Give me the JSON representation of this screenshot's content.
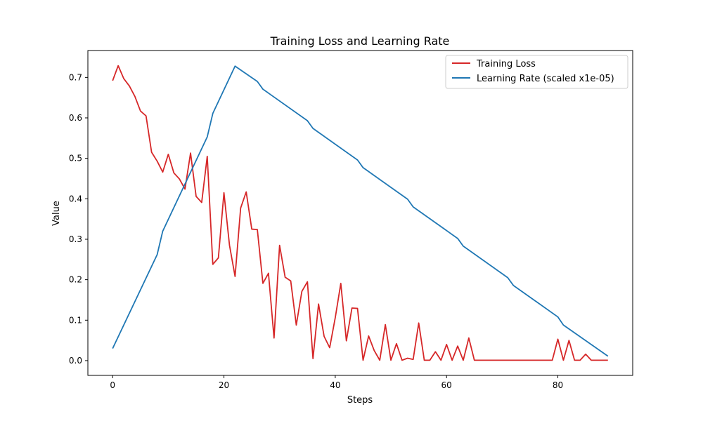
{
  "chart_data": {
    "type": "line",
    "title": "Training Loss and Learning Rate",
    "xlabel": "Steps",
    "ylabel": "Value",
    "xlim": [
      -4.45,
      93.45
    ],
    "ylim": [
      -0.0365,
      0.7665
    ],
    "xticks": [
      0,
      20,
      40,
      60,
      80
    ],
    "xtick_labels": [
      "0",
      "20",
      "40",
      "60",
      "80"
    ],
    "yticks": [
      0.0,
      0.1,
      0.2,
      0.3,
      0.4,
      0.5,
      0.6,
      0.7
    ],
    "ytick_labels": [
      "0.0",
      "0.1",
      "0.2",
      "0.3",
      "0.4",
      "0.5",
      "0.6",
      "0.7"
    ],
    "grid": false,
    "legend_position": "top-right",
    "series": [
      {
        "name": "Training Loss",
        "color": "#d62728",
        "x": [
          0,
          1,
          2,
          3,
          4,
          5,
          6,
          7,
          8,
          9,
          10,
          11,
          12,
          13,
          14,
          15,
          16,
          17,
          18,
          19,
          20,
          21,
          22,
          23,
          24,
          25,
          26,
          27,
          28,
          29,
          30,
          31,
          32,
          33,
          34,
          35,
          36,
          37,
          38,
          39,
          40,
          41,
          42,
          43,
          44,
          45,
          46,
          47,
          48,
          49,
          50,
          51,
          52,
          53,
          54,
          55,
          56,
          57,
          58,
          59,
          60,
          61,
          62,
          63,
          64,
          65,
          66,
          67,
          68,
          69,
          70,
          71,
          72,
          73,
          74,
          75,
          76,
          77,
          78,
          79,
          80,
          81,
          82,
          83,
          84,
          85,
          86,
          87,
          88,
          89
        ],
        "values": [
          0.692,
          0.729,
          0.697,
          0.679,
          0.653,
          0.617,
          0.605,
          0.515,
          0.493,
          0.466,
          0.51,
          0.464,
          0.449,
          0.424,
          0.513,
          0.406,
          0.391,
          0.505,
          0.238,
          0.254,
          0.415,
          0.285,
          0.208,
          0.377,
          0.417,
          0.325,
          0.324,
          0.191,
          0.216,
          0.056,
          0.285,
          0.206,
          0.197,
          0.088,
          0.171,
          0.195,
          0.005,
          0.14,
          0.06,
          0.032,
          0.106,
          0.191,
          0.049,
          0.13,
          0.129,
          0.001,
          0.061,
          0.025,
          0.001,
          0.089,
          0.001,
          0.042,
          0.001,
          0.006,
          0.003,
          0.093,
          0.001,
          0.001,
          0.022,
          0.001,
          0.04,
          0.001,
          0.036,
          0.001,
          0.056,
          0.001,
          0.001,
          0.001,
          0.001,
          0.001,
          0.001,
          0.001,
          0.001,
          0.001,
          0.001,
          0.001,
          0.001,
          0.001,
          0.001,
          0.001,
          0.053,
          0.001,
          0.05,
          0.001,
          0.001,
          0.016,
          0.001,
          0.001,
          0.001,
          0.001
        ]
      },
      {
        "name": "Learning Rate (scaled x1e-05)",
        "color": "#1f77b4",
        "x": [
          0,
          8,
          9,
          17,
          18,
          22,
          26,
          27,
          35,
          36,
          44,
          45,
          53,
          54,
          62,
          63,
          71,
          72,
          80,
          81,
          89
        ],
        "values": [
          0.03,
          0.262,
          0.32,
          0.553,
          0.611,
          0.728,
          0.69,
          0.671,
          0.593,
          0.574,
          0.496,
          0.477,
          0.399,
          0.38,
          0.302,
          0.283,
          0.205,
          0.186,
          0.108,
          0.088,
          0.011
        ]
      }
    ]
  }
}
